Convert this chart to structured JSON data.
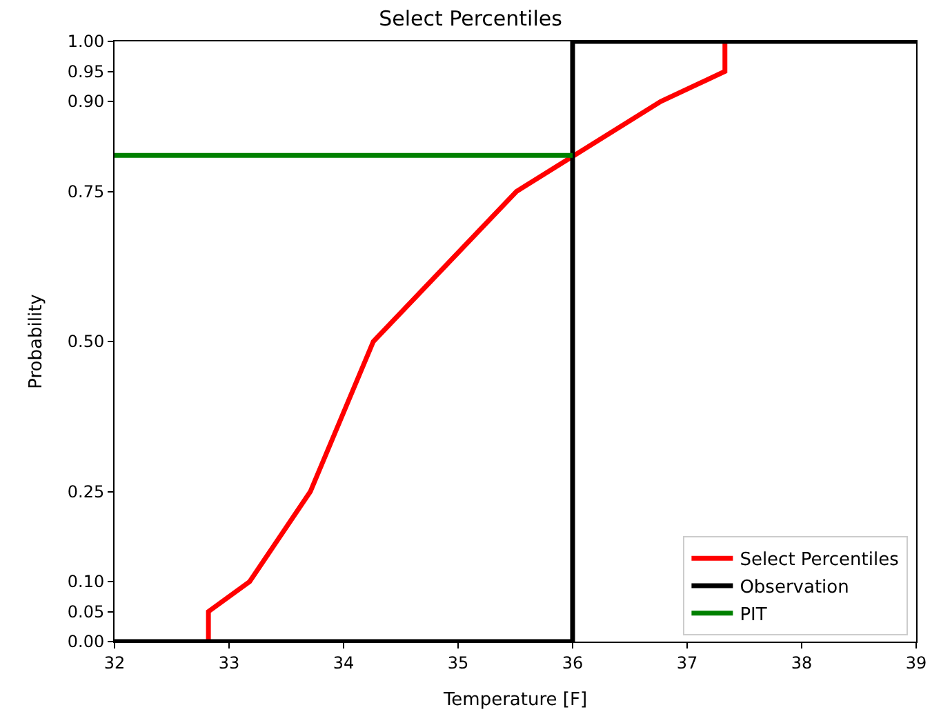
{
  "chart_data": {
    "type": "line",
    "title": "Select Percentiles",
    "xlabel": "Temperature [F]",
    "ylabel": "Probability",
    "xlim": [
      32,
      39
    ],
    "xticks": [
      32,
      33,
      34,
      35,
      36,
      37,
      38,
      39
    ],
    "ylim": [
      0,
      1
    ],
    "yticks": [
      {
        "value": 0,
        "label": "0.00"
      },
      {
        "value": 0.05,
        "label": "0.05"
      },
      {
        "value": 0.1,
        "label": "0.10"
      },
      {
        "value": 0.25,
        "label": "0.25"
      },
      {
        "value": 0.5,
        "label": "0.50"
      },
      {
        "value": 0.75,
        "label": "0.75"
      },
      {
        "value": 0.9,
        "label": "0.90"
      },
      {
        "value": 0.95,
        "label": "0.95"
      },
      {
        "value": 1,
        "label": "1.00"
      }
    ],
    "legend": "bottom right",
    "marker": "none",
    "line_style": "solid",
    "series": [
      {
        "name": "Select Percentiles",
        "color": "#ff0000",
        "x": [
          32.82,
          32.82,
          33.18,
          33.71,
          34.26,
          35.51,
          36.77,
          37.33,
          37.33
        ],
        "values": [
          0,
          0.05,
          0.1,
          0.25,
          0.5,
          0.75,
          0.9,
          0.95,
          1
        ]
      },
      {
        "name": "Observation",
        "type": "step",
        "color": "#000000",
        "x": [
          32,
          36,
          39
        ],
        "values": [
          0,
          1,
          1
        ]
      },
      {
        "name": "PIT",
        "color": "#008000",
        "x": [
          32,
          36
        ],
        "values": [
          0.81,
          0.81
        ]
      }
    ]
  }
}
